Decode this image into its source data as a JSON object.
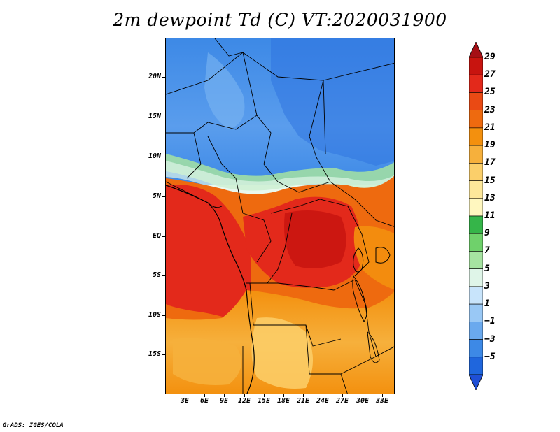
{
  "title": "2m dewpoint Td (C) VT:2020031900",
  "footer": "GrADS: IGES/COLA",
  "map": {
    "lon_ticks": [
      "3E",
      "6E",
      "9E",
      "12E",
      "15E",
      "18E",
      "21E",
      "24E",
      "27E",
      "30E",
      "33E"
    ],
    "lat_ticks": [
      "20N",
      "15N",
      "10N",
      "5N",
      "EQ",
      "5S",
      "10S",
      "15S"
    ]
  },
  "colorbar": {
    "labels": [
      "29",
      "27",
      "25",
      "23",
      "21",
      "19",
      "17",
      "15",
      "13",
      "11",
      "9",
      "7",
      "5",
      "3",
      "1",
      "−1",
      "−3",
      "−5"
    ],
    "colors": [
      "#a50f15",
      "#c8140f",
      "#e3291b",
      "#ea4a14",
      "#ee6a0f",
      "#f3900e",
      "#f6b03c",
      "#fbcf6a",
      "#fde79a",
      "#fff7bf",
      "#35b549",
      "#6fd16b",
      "#a6e3a1",
      "#dff5e8",
      "#c8e4fb",
      "#99c8f5",
      "#6aa9ee",
      "#3d89e6",
      "#1f66dd",
      "#1f4fd6"
    ]
  }
}
